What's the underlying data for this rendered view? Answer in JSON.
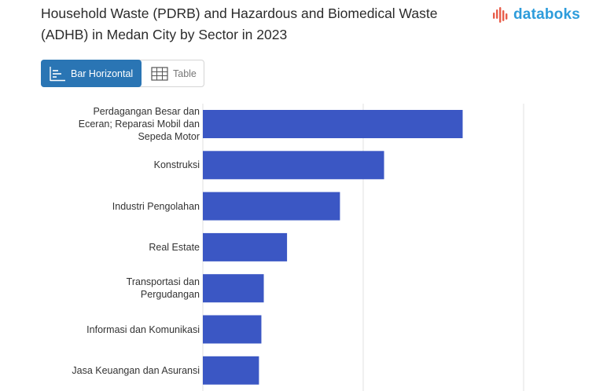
{
  "header": {
    "title": "Household Waste (PDRB) and Hazardous and Biomedical Waste (ADHB) in Medan City by Sector in 2023"
  },
  "logo": {
    "text": "databoks",
    "color": "#2d9cdb",
    "accent": "#e85d4a"
  },
  "view_toggle": {
    "bar_label": "Bar Horizontal",
    "table_label": "Table",
    "bar_icon": "bar-chart-icon",
    "table_icon": "table-grid-icon"
  },
  "chart_data": {
    "type": "bar",
    "orientation": "horizontal",
    "categories": [
      "Perdagangan Besar dan\nEceran; Reparasi Mobil dan\nSepeda Motor",
      "Konstruksi",
      "Industri Pengolahan",
      "Real Estate",
      "Transportasi dan\nPergudangan",
      "Informasi dan Komunikasi",
      "Jasa Keuangan dan Asuransi"
    ],
    "values": [
      16.2,
      11.3,
      8.55,
      5.25,
      3.8,
      3.65,
      3.5
    ],
    "xlim": [
      0,
      20
    ],
    "grid": true,
    "bar_color": "#3b57c4"
  }
}
